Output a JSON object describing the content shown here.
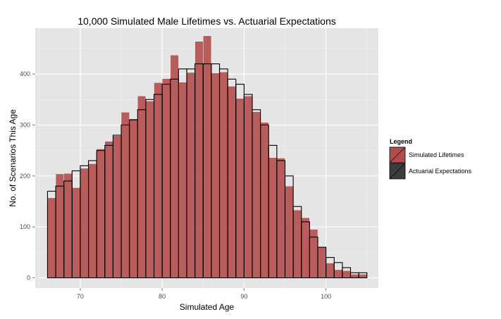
{
  "chart_data": {
    "type": "bar",
    "title": "10,000 Simulated Male Lifetimes vs. Actuarial Expectations",
    "xlabel": "Simulated Age",
    "ylabel": "No. of Scenarios This Age",
    "xlim": [
      66,
      105
    ],
    "ylim": [
      0,
      490
    ],
    "x_ticks": [
      70,
      80,
      90,
      100
    ],
    "y_ticks": [
      0,
      100,
      200,
      300,
      400
    ],
    "grid": true,
    "legend": {
      "title": "Legend",
      "position": "right",
      "entries": [
        "Simulated Lifetimes",
        "Actuarial Expectations"
      ]
    },
    "bin_width": 1,
    "bins_start": [
      66,
      67,
      68,
      69,
      70,
      71,
      72,
      73,
      74,
      75,
      76,
      77,
      78,
      79,
      80,
      81,
      82,
      83,
      84,
      85,
      86,
      87,
      88,
      89,
      90,
      91,
      92,
      93,
      94,
      95,
      96,
      97,
      98,
      99,
      100,
      101,
      102,
      103,
      104
    ],
    "series": [
      {
        "name": "Simulated Lifetimes",
        "style": "filled",
        "values": [
          157,
          204,
          205,
          177,
          215,
          224,
          253,
          268,
          279,
          325,
          312,
          357,
          347,
          383,
          391,
          437,
          384,
          403,
          464,
          475,
          402,
          404,
          376,
          352,
          357,
          326,
          305,
          236,
          235,
          180,
          133,
          118,
          95,
          60,
          29,
          16,
          14,
          7,
          7
        ]
      },
      {
        "name": "Actuarial Expectations",
        "style": "outline",
        "values": [
          170,
          180,
          190,
          210,
          220,
          230,
          250,
          260,
          280,
          300,
          310,
          330,
          350,
          360,
          380,
          390,
          410,
          410,
          420,
          420,
          420,
          410,
          390,
          380,
          360,
          330,
          300,
          260,
          230,
          200,
          140,
          110,
          80,
          60,
          40,
          30,
          20,
          10,
          10
        ]
      }
    ],
    "colors": {
      "fill": "#b34d4d",
      "fill_opacity": 0.9,
      "outline": "#000000",
      "panel_bg": "#e5e5e5",
      "grid_major": "#ffffff",
      "grid_minor": "#f2f2f2"
    }
  }
}
